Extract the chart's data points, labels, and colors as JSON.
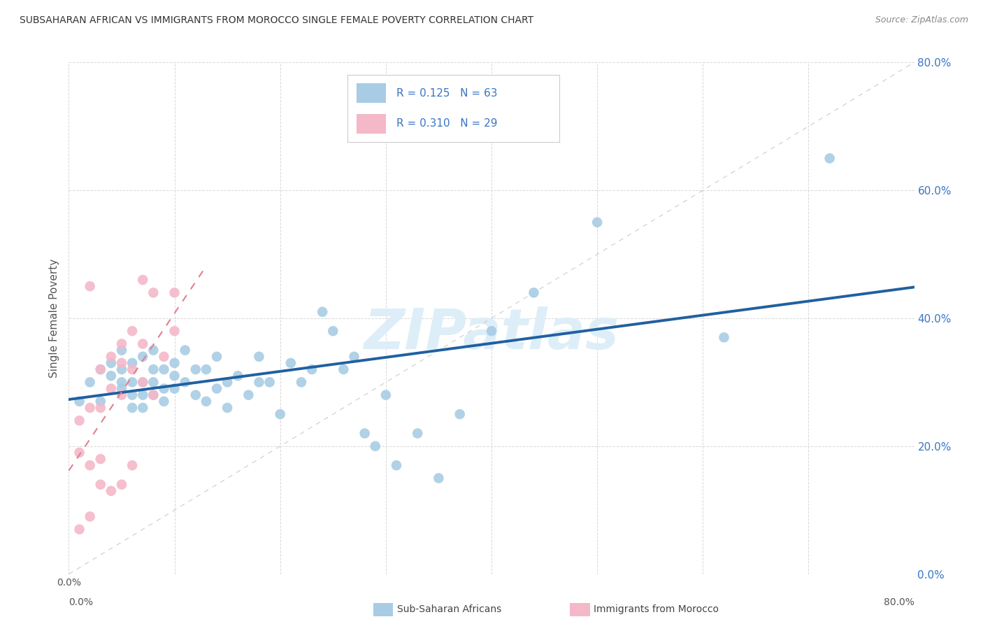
{
  "title": "SUBSAHARAN AFRICAN VS IMMIGRANTS FROM MOROCCO SINGLE FEMALE POVERTY CORRELATION CHART",
  "source": "Source: ZipAtlas.com",
  "ylabel": "Single Female Poverty",
  "legend_label1": "Sub-Saharan Africans",
  "legend_label2": "Immigrants from Morocco",
  "r1": 0.125,
  "n1": 63,
  "r2": 0.31,
  "n2": 29,
  "blue_color": "#a8cce4",
  "pink_color": "#f4b8c8",
  "blue_line_color": "#2060a0",
  "pink_line_color": "#e08090",
  "watermark_color": "#ddeef8",
  "xlim": [
    0.0,
    0.8
  ],
  "ylim": [
    0.0,
    0.8
  ],
  "blue_x": [
    0.01,
    0.02,
    0.03,
    0.03,
    0.04,
    0.04,
    0.05,
    0.05,
    0.05,
    0.05,
    0.06,
    0.06,
    0.06,
    0.06,
    0.07,
    0.07,
    0.07,
    0.07,
    0.08,
    0.08,
    0.08,
    0.08,
    0.09,
    0.09,
    0.09,
    0.1,
    0.1,
    0.1,
    0.11,
    0.11,
    0.12,
    0.12,
    0.13,
    0.13,
    0.14,
    0.14,
    0.15,
    0.15,
    0.16,
    0.17,
    0.18,
    0.18,
    0.19,
    0.2,
    0.21,
    0.22,
    0.23,
    0.24,
    0.25,
    0.26,
    0.27,
    0.28,
    0.29,
    0.3,
    0.31,
    0.33,
    0.35,
    0.37,
    0.4,
    0.44,
    0.5,
    0.62,
    0.72
  ],
  "blue_y": [
    0.27,
    0.3,
    0.32,
    0.27,
    0.31,
    0.33,
    0.29,
    0.3,
    0.32,
    0.35,
    0.28,
    0.3,
    0.33,
    0.26,
    0.34,
    0.28,
    0.26,
    0.3,
    0.35,
    0.28,
    0.3,
    0.32,
    0.32,
    0.29,
    0.27,
    0.33,
    0.29,
    0.31,
    0.3,
    0.35,
    0.32,
    0.28,
    0.32,
    0.27,
    0.34,
    0.29,
    0.3,
    0.26,
    0.31,
    0.28,
    0.3,
    0.34,
    0.3,
    0.25,
    0.33,
    0.3,
    0.32,
    0.41,
    0.38,
    0.32,
    0.34,
    0.22,
    0.2,
    0.28,
    0.17,
    0.22,
    0.15,
    0.25,
    0.38,
    0.44,
    0.55,
    0.37,
    0.65
  ],
  "pink_x": [
    0.01,
    0.01,
    0.01,
    0.02,
    0.02,
    0.02,
    0.03,
    0.03,
    0.03,
    0.03,
    0.04,
    0.04,
    0.04,
    0.05,
    0.05,
    0.05,
    0.05,
    0.06,
    0.06,
    0.06,
    0.07,
    0.07,
    0.07,
    0.08,
    0.08,
    0.09,
    0.1,
    0.1,
    0.02
  ],
  "pink_y": [
    0.07,
    0.19,
    0.24,
    0.09,
    0.17,
    0.26,
    0.14,
    0.26,
    0.32,
    0.18,
    0.13,
    0.29,
    0.34,
    0.14,
    0.28,
    0.33,
    0.36,
    0.17,
    0.32,
    0.38,
    0.3,
    0.36,
    0.46,
    0.28,
    0.44,
    0.34,
    0.38,
    0.44,
    0.45
  ]
}
